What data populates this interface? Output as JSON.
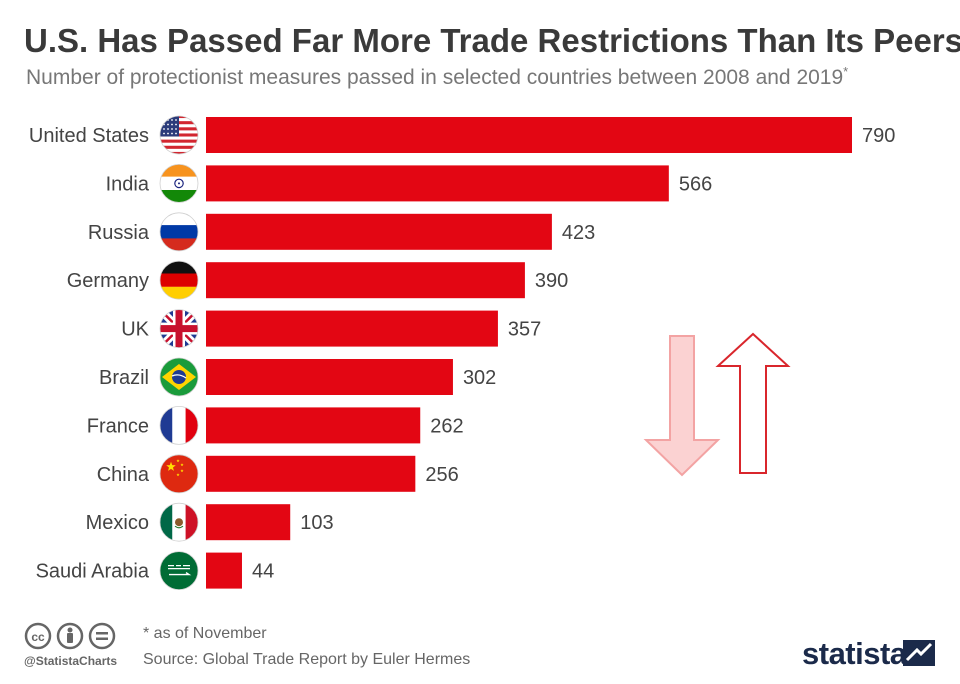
{
  "header": {
    "title": "U.S. Has Passed Far More Trade Restrictions Than Its Peers",
    "subtitle": "Number of protectionist measures passed in selected countries between 2008 and 2019",
    "subtitle_mark": "*"
  },
  "chart_data": {
    "type": "bar",
    "orientation": "horizontal",
    "categories": [
      "United States",
      "India",
      "Russia",
      "Germany",
      "UK",
      "Brazil",
      "France",
      "China",
      "Mexico",
      "Saudi Arabia"
    ],
    "values": [
      790,
      566,
      423,
      390,
      357,
      302,
      262,
      256,
      103,
      44
    ],
    "flags": [
      "us-flag-icon",
      "india-flag-icon",
      "russia-flag-icon",
      "germany-flag-icon",
      "uk-flag-icon",
      "brazil-flag-icon",
      "france-flag-icon",
      "china-flag-icon",
      "mexico-flag-icon",
      "saudi-arabia-flag-icon"
    ],
    "bar_color": "#e30613",
    "grid": false,
    "legend": "none"
  },
  "footer": {
    "note": "* as of November",
    "source": "Source: Global Trade Report by Euler Hermes",
    "handle": "@StatistaCharts",
    "brand": "statista"
  },
  "colors": {
    "bar": "#e30613",
    "arrow_down_fill": "#fbd2d2",
    "arrow_down_stroke": "#f3a3a3",
    "arrow_up_stroke": "#d9262c",
    "brand": "#1b2a4a"
  }
}
